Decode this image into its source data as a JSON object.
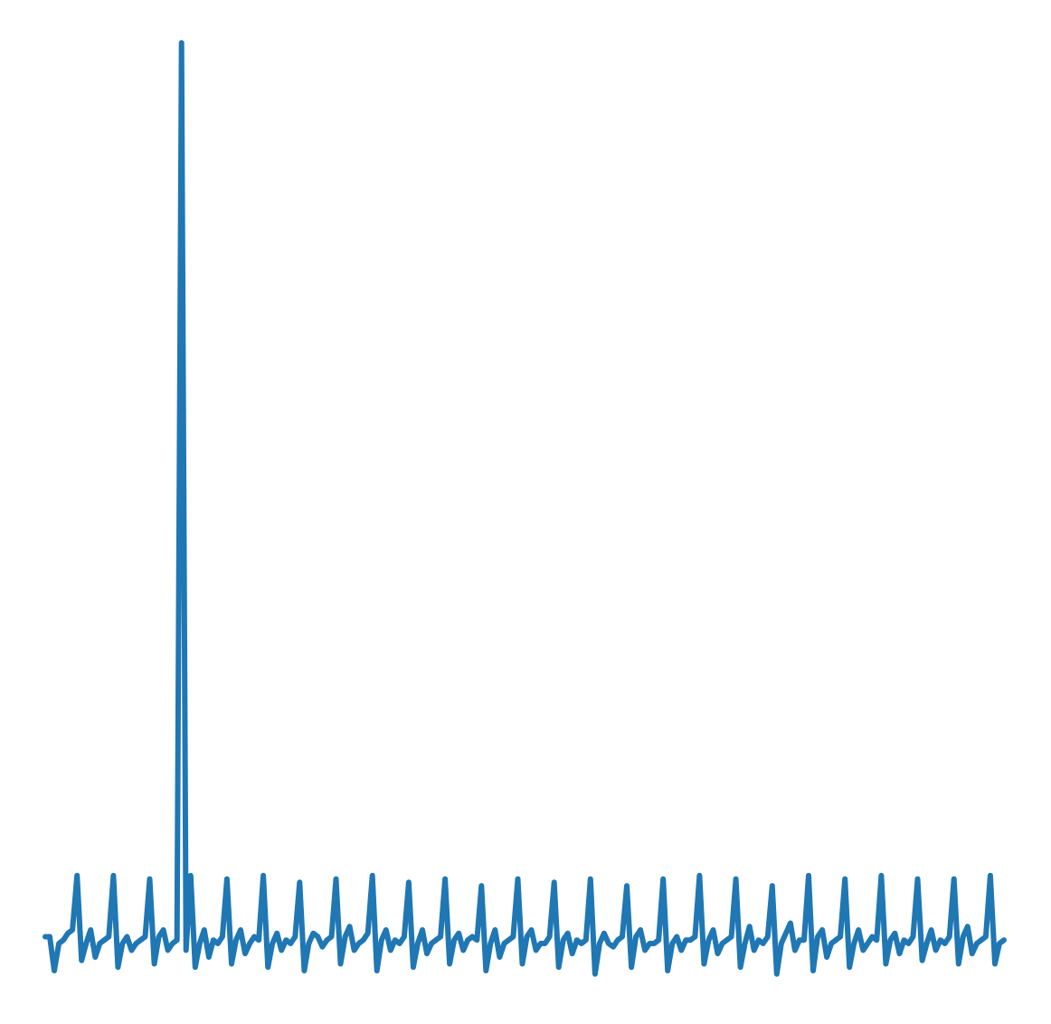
{
  "chart_data": {
    "type": "line",
    "color": "#1f77b4",
    "ylim": [
      -0.6,
      13.5
    ],
    "values": [
      0.1,
      0.1,
      -0.4,
      0.0,
      0.05,
      0.15,
      0.2,
      1.0,
      -0.25,
      0.0,
      0.2,
      -0.2,
      0.0,
      0.05,
      0.1,
      1.0,
      -0.35,
      0.0,
      0.1,
      -0.1,
      0.0,
      0.05,
      0.1,
      0.95,
      -0.3,
      0.1,
      0.2,
      -0.1,
      0.0,
      0.05,
      13.27,
      -0.1,
      1.0,
      -0.35,
      0.0,
      0.2,
      -0.2,
      0.05,
      0.0,
      0.1,
      0.95,
      -0.3,
      0.05,
      0.2,
      -0.15,
      0.0,
      0.1,
      0.05,
      1.0,
      -0.35,
      0.0,
      0.15,
      -0.1,
      0.05,
      0.0,
      0.1,
      0.9,
      -0.4,
      0.0,
      0.15,
      0.1,
      -0.05,
      0.05,
      0.1,
      0.95,
      -0.3,
      0.1,
      0.25,
      -0.1,
      0.0,
      0.05,
      0.15,
      1.0,
      -0.4,
      0.05,
      0.2,
      -0.1,
      0.05,
      0.0,
      0.1,
      0.9,
      -0.35,
      0.0,
      0.2,
      -0.15,
      0.0,
      0.05,
      0.1,
      0.95,
      -0.3,
      0.05,
      0.15,
      -0.1,
      0.05,
      0.1,
      0.05,
      0.85,
      -0.4,
      0.0,
      0.2,
      -0.2,
      0.0,
      0.05,
      0.1,
      0.95,
      -0.3,
      0.1,
      0.2,
      -0.1,
      0.0,
      0.0,
      0.1,
      0.9,
      -0.35,
      0.05,
      0.15,
      -0.15,
      0.05,
      0.0,
      0.05,
      0.95,
      -0.45,
      0.0,
      0.15,
      0.0,
      -0.05,
      0.05,
      0.1,
      0.85,
      -0.35,
      0.1,
      0.2,
      -0.1,
      0.0,
      0.0,
      0.05,
      0.95,
      -0.4,
      0.0,
      0.1,
      -0.1,
      0.05,
      0.05,
      0.1,
      1.0,
      -0.3,
      0.05,
      0.2,
      -0.15,
      0.0,
      0.05,
      0.1,
      0.95,
      -0.35,
      0.0,
      0.25,
      -0.1,
      0.05,
      0.0,
      0.1,
      0.85,
      -0.45,
      0.0,
      0.15,
      0.3,
      -0.1,
      0.05,
      0.05,
      1.0,
      -0.4,
      0.1,
      0.2,
      -0.2,
      0.0,
      0.05,
      0.1,
      0.95,
      -0.35,
      0.0,
      0.2,
      -0.1,
      0.0,
      0.1,
      0.05,
      1.0,
      -0.3,
      0.05,
      0.15,
      -0.15,
      0.05,
      0.0,
      0.1,
      0.95,
      -0.25,
      0.0,
      0.2,
      -0.1,
      0.05,
      0.0,
      0.1,
      0.95,
      -0.3,
      0.1,
      0.25,
      -0.15,
      0.0,
      0.05,
      0.1,
      1.0,
      -0.3,
      0.0,
      0.05
    ]
  }
}
